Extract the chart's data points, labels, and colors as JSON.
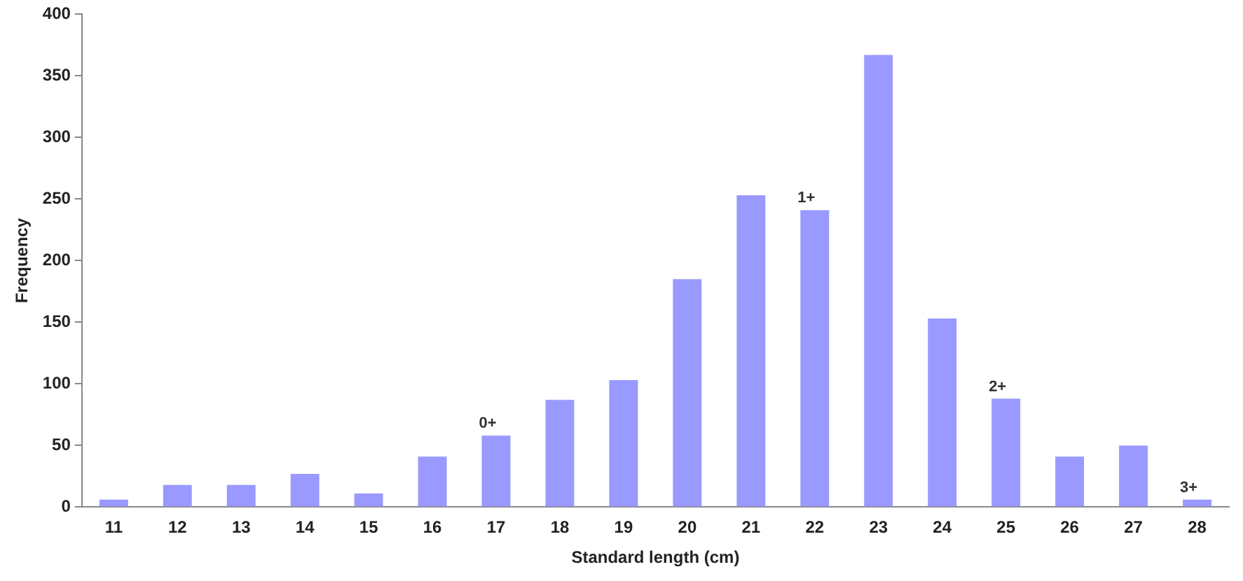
{
  "chart_data": {
    "type": "bar",
    "xlabel": "Standard length (cm)",
    "ylabel": "Frequency",
    "categories": [
      "11",
      "12",
      "13",
      "14",
      "15",
      "16",
      "17",
      "18",
      "19",
      "20",
      "21",
      "22",
      "23",
      "24",
      "25",
      "26",
      "27",
      "28"
    ],
    "values": [
      6,
      18,
      18,
      27,
      11,
      41,
      58,
      87,
      103,
      185,
      253,
      241,
      367,
      153,
      88,
      41,
      50,
      6
    ],
    "color": "#9999ff",
    "ylim": [
      0,
      400
    ],
    "yticks": [
      0,
      50,
      100,
      150,
      200,
      250,
      300,
      350,
      400
    ],
    "grid": false,
    "legend": false,
    "annotations": [
      {
        "text": "0+",
        "x": "17",
        "y": 58
      },
      {
        "text": "1+",
        "x": "22",
        "y": 241
      },
      {
        "text": "2+",
        "x": "25",
        "y": 88
      },
      {
        "text": "3+",
        "x": "28",
        "y": 6
      }
    ]
  }
}
